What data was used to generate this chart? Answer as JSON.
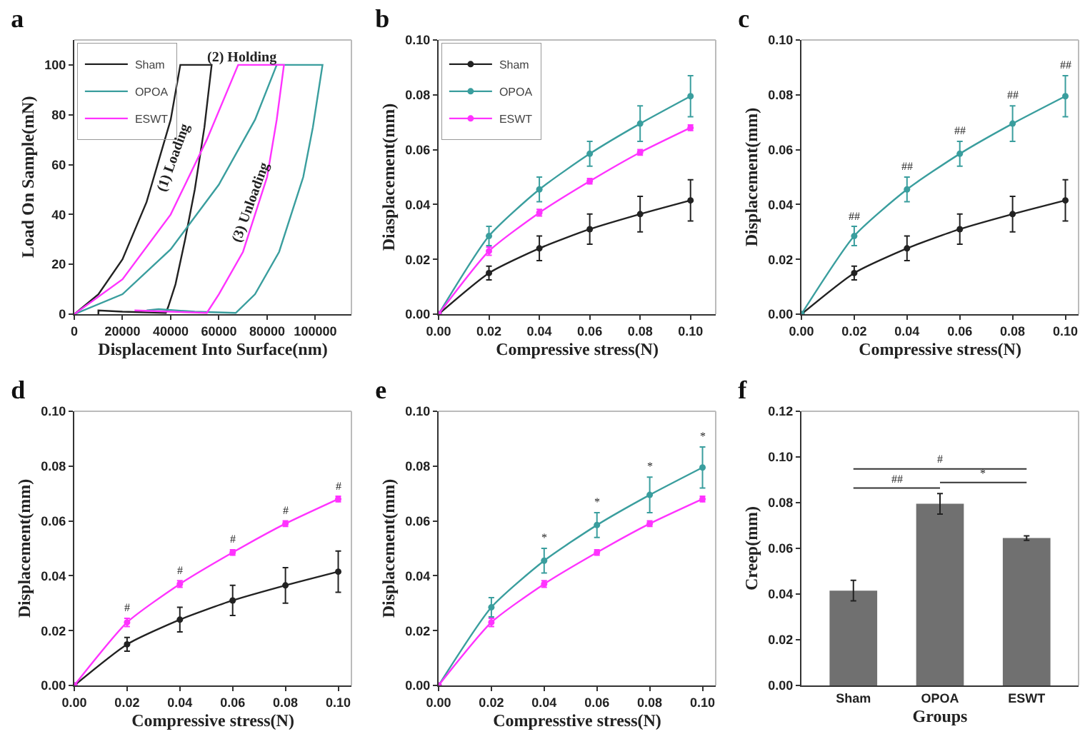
{
  "chart_data": [
    {
      "type": "line",
      "title": "a",
      "xlabel": "Displacement Into Surface(nm)",
      "ylabel": "Load On Sample(mN)",
      "xlim": [
        0,
        115000
      ],
      "xticks": [
        0,
        20000,
        40000,
        60000,
        80000,
        100000
      ],
      "ylim": [
        0,
        110
      ],
      "yticks": [
        0,
        20,
        40,
        60,
        80,
        100
      ],
      "legend": "top left",
      "grid": false,
      "series": [
        {
          "name": "Sham",
          "color": "#222222",
          "x": [
            0,
            10000,
            20000,
            30000,
            40000,
            44000,
            57000,
            54000,
            50000,
            46000,
            42000,
            39000,
            38000,
            20000,
            10000,
            10000
          ],
          "values": [
            0,
            8,
            22,
            45,
            78,
            100,
            100,
            75,
            50,
            30,
            12,
            3,
            0.5,
            1,
            1.5,
            0
          ]
        },
        {
          "name": "OPOA",
          "color": "#3a9e9e",
          "x": [
            0,
            20000,
            40000,
            60000,
            75000,
            84000,
            103000,
            99000,
            95000,
            85000,
            75000,
            67000,
            50000,
            35000,
            30000
          ],
          "values": [
            0,
            8,
            26,
            52,
            78,
            100,
            100,
            75,
            55,
            25,
            8,
            0.5,
            1,
            2,
            1.5
          ]
        },
        {
          "name": "ESWT",
          "color": "#ff33ff",
          "x": [
            0,
            20000,
            40000,
            55000,
            68000,
            87000,
            84000,
            80000,
            70000,
            60000,
            55000,
            40000,
            25000
          ],
          "values": [
            0,
            14,
            40,
            70,
            100,
            100,
            78,
            55,
            25,
            8,
            0.5,
            1,
            1.5
          ]
        }
      ],
      "annotations": [
        "(1) Loading",
        "(2) Holding",
        "(3) Unloading"
      ]
    },
    {
      "type": "line",
      "title": "b",
      "xlabel": "Compressive stress(N)",
      "ylabel": "Diasplacement(mm)",
      "xlim": [
        0,
        0.11
      ],
      "xticks": [
        {
          "value": 0,
          "label": "0.00"
        },
        {
          "value": 0.02,
          "label": "0.02"
        },
        {
          "value": 0.04,
          "label": "0.04"
        },
        {
          "value": 0.06,
          "label": "0.06"
        },
        {
          "value": 0.08,
          "label": "0.08"
        },
        {
          "value": 0.1,
          "label": "0.10"
        }
      ],
      "ylim": [
        0,
        0.1
      ],
      "yticks": [
        {
          "value": 0,
          "label": "0.00"
        },
        {
          "value": 0.02,
          "label": "0.02"
        },
        {
          "value": 0.04,
          "label": "0.04"
        },
        {
          "value": 0.06,
          "label": "0.06"
        },
        {
          "value": 0.08,
          "label": "0.08"
        },
        {
          "value": 0.1,
          "label": "0.10"
        }
      ],
      "legend": "top left",
      "grid": false,
      "marker": "circle",
      "x": [
        0,
        0.02,
        0.04,
        0.06,
        0.08,
        0.1
      ],
      "series": [
        {
          "name": "Sham",
          "color": "#222222",
          "values": [
            0,
            0.015,
            0.024,
            0.031,
            0.0365,
            0.0415
          ],
          "errors": [
            null,
            0.0025,
            0.0045,
            0.0055,
            0.0065,
            0.0075
          ]
        },
        {
          "name": "OPOA",
          "color": "#3a9e9e",
          "values": [
            0,
            0.0285,
            0.0455,
            0.0585,
            0.0695,
            0.0795
          ],
          "errors": [
            null,
            0.0035,
            0.0045,
            0.0045,
            0.0065,
            0.0075
          ]
        },
        {
          "name": "ESWT",
          "color": "#ff33ff",
          "values": [
            0,
            0.023,
            0.037,
            0.0485,
            0.059,
            0.068
          ],
          "errors": [
            null,
            0.0015,
            0.0012,
            0.001,
            0.001,
            0.001
          ]
        }
      ]
    },
    {
      "type": "line",
      "title": "c",
      "xlabel": "Compressive stress(N)",
      "ylabel": "Displacement(mm)",
      "xlim": [
        0,
        0.105
      ],
      "xticks": [
        {
          "value": 0,
          "label": "0.00"
        },
        {
          "value": 0.02,
          "label": "0.02"
        },
        {
          "value": 0.04,
          "label": "0.04"
        },
        {
          "value": 0.06,
          "label": "0.06"
        },
        {
          "value": 0.08,
          "label": "0.08"
        },
        {
          "value": 0.1,
          "label": "0.10"
        }
      ],
      "ylim": [
        0,
        0.1
      ],
      "yticks": [
        {
          "value": 0,
          "label": "0.00"
        },
        {
          "value": 0.02,
          "label": "0.02"
        },
        {
          "value": 0.04,
          "label": "0.04"
        },
        {
          "value": 0.06,
          "label": "0.06"
        },
        {
          "value": 0.08,
          "label": "0.08"
        },
        {
          "value": 0.1,
          "label": "0.10"
        }
      ],
      "grid": false,
      "x": [
        0,
        0.02,
        0.04,
        0.06,
        0.08,
        0.1
      ],
      "series": [
        {
          "color": "#222222",
          "values": [
            0,
            0.015,
            0.024,
            0.031,
            0.0365,
            0.0415
          ],
          "errors": [
            null,
            0.0025,
            0.0045,
            0.0055,
            0.0065,
            0.0075
          ]
        },
        {
          "color": "#3a9e9e",
          "values": [
            0,
            0.0285,
            0.0455,
            0.0585,
            0.0695,
            0.0795
          ],
          "errors": [
            null,
            0.0035,
            0.0045,
            0.0045,
            0.0065,
            0.0075
          ]
        }
      ],
      "marker": "circle",
      "annotations": [
        "##",
        "##",
        "##",
        "##",
        "##"
      ]
    },
    {
      "type": "line",
      "title": "d",
      "xlabel": "Compressive stress(N)",
      "ylabel": "Displacement(mm)",
      "xlim": [
        0,
        0.105
      ],
      "xticks": [
        {
          "value": 0,
          "label": "0.00"
        },
        {
          "value": 0.02,
          "label": "0.02"
        },
        {
          "value": 0.04,
          "label": "0.04"
        },
        {
          "value": 0.06,
          "label": "0.06"
        },
        {
          "value": 0.08,
          "label": "0.08"
        },
        {
          "value": 0.1,
          "label": "0.10"
        }
      ],
      "ylim": [
        0,
        0.1
      ],
      "yticks": [
        {
          "value": 0,
          "label": "0.00"
        },
        {
          "value": 0.02,
          "label": "0.02"
        },
        {
          "value": 0.04,
          "label": "0.04"
        },
        {
          "value": 0.06,
          "label": "0.06"
        },
        {
          "value": 0.08,
          "label": "0.08"
        },
        {
          "value": 0.1,
          "label": "0.10"
        }
      ],
      "grid": false,
      "x": [
        0,
        0.02,
        0.04,
        0.06,
        0.08,
        0.1
      ],
      "series": [
        {
          "color": "#222222",
          "values": [
            0,
            0.015,
            0.024,
            0.031,
            0.0365,
            0.0415
          ],
          "errors": [
            null,
            0.0025,
            0.0045,
            0.0055,
            0.0065,
            0.0075
          ]
        },
        {
          "color": "#ff33ff",
          "values": [
            0,
            0.023,
            0.037,
            0.0485,
            0.059,
            0.068
          ],
          "errors": [
            null,
            0.0015,
            0.0012,
            0.001,
            0.001,
            0.001
          ]
        }
      ],
      "marker": "circle",
      "annotations": [
        "#",
        "#",
        "#",
        "#",
        "#"
      ]
    },
    {
      "type": "line",
      "title": "e",
      "xlabel": "Compresstive stress(N)",
      "ylabel": "Displacement(mm)",
      "xlim": [
        0,
        0.105
      ],
      "xticks": [
        {
          "value": 0,
          "label": "0.00"
        },
        {
          "value": 0.02,
          "label": "0.02"
        },
        {
          "value": 0.04,
          "label": "0.04"
        },
        {
          "value": 0.06,
          "label": "0.06"
        },
        {
          "value": 0.08,
          "label": "0.08"
        },
        {
          "value": 0.1,
          "label": "0.10"
        }
      ],
      "ylim": [
        0,
        0.1
      ],
      "yticks": [
        {
          "value": 0,
          "label": "0.00"
        },
        {
          "value": 0.02,
          "label": "0.02"
        },
        {
          "value": 0.04,
          "label": "0.04"
        },
        {
          "value": 0.06,
          "label": "0.06"
        },
        {
          "value": 0.08,
          "label": "0.08"
        },
        {
          "value": 0.1,
          "label": "0.10"
        }
      ],
      "grid": false,
      "x": [
        0,
        0.02,
        0.04,
        0.06,
        0.08,
        0.1
      ],
      "series": [
        {
          "color": "#3a9e9e",
          "values": [
            0,
            0.0285,
            0.0455,
            0.0585,
            0.0695,
            0.0795
          ],
          "errors": [
            null,
            0.0035,
            0.0045,
            0.0045,
            0.0065,
            0.0075
          ]
        },
        {
          "color": "#ff33ff",
          "values": [
            0,
            0.023,
            0.037,
            0.0485,
            0.059,
            0.068
          ],
          "errors": [
            null,
            0.0015,
            0.0012,
            0.001,
            0.001,
            0.001
          ]
        }
      ],
      "marker": "circle",
      "annotations": [
        "*",
        "*",
        "*",
        "*"
      ]
    },
    {
      "type": "bar",
      "title": "f",
      "xlabel": "Groups",
      "ylabel": "Creep(mm)",
      "categories": [
        "Sham",
        "OPOA",
        "ESWT"
      ],
      "values": [
        0.0415,
        0.0795,
        0.0645
      ],
      "errors": [
        0.0045,
        0.0045,
        0.001
      ],
      "color": "#707070",
      "ylim": [
        0,
        0.12
      ],
      "yticks": [
        {
          "value": 0,
          "label": "0.00"
        },
        {
          "value": 0.02,
          "label": "0.02"
        },
        {
          "value": 0.04,
          "label": "0.04"
        },
        {
          "value": 0.06,
          "label": "0.06"
        },
        {
          "value": 0.08,
          "label": "0.08"
        },
        {
          "value": 0.1,
          "label": "0.10"
        },
        {
          "value": 0.12,
          "label": "0.12"
        }
      ],
      "grid": false,
      "annotations": [
        "##",
        "#",
        "*"
      ]
    }
  ]
}
